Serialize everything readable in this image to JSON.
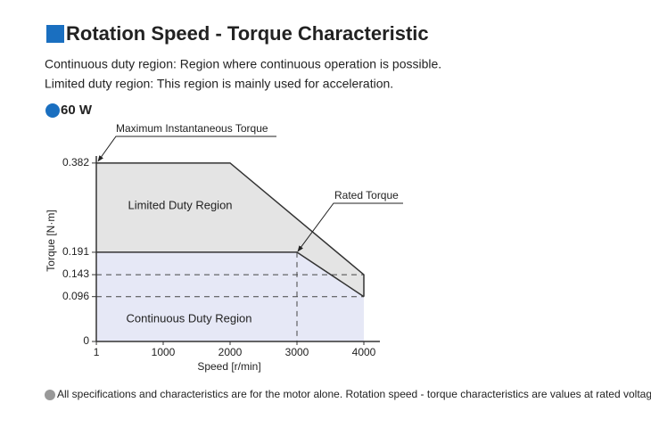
{
  "header": {
    "title": "Rotation Speed - Torque Characteristic",
    "lines": [
      "Continuous duty region: Region where continuous operation is possible.",
      "Limited duty region: This region is mainly used for acceleration."
    ],
    "model": "60 W"
  },
  "chart_data": {
    "type": "line",
    "x_label": "Speed [r/min]",
    "y_label": "Torque [N·m]",
    "xlim": [
      0,
      4240
    ],
    "ylim": [
      0,
      0.397
    ],
    "xticks": [
      1,
      1000,
      2000,
      3000,
      4000
    ],
    "yticks": [
      0,
      0.096,
      0.143,
      0.191,
      0.382
    ],
    "series": [
      {
        "name": "Maximum Instantaneous Torque",
        "color": "#333333",
        "x": [
          0,
          2000,
          4000,
          4000
        ],
        "values": [
          0.382,
          0.382,
          0.143,
          0.096
        ]
      },
      {
        "name": "Rated Torque",
        "color": "#333333",
        "x": [
          0,
          3000,
          4000
        ],
        "values": [
          0.191,
          0.191,
          0.096
        ]
      }
    ],
    "annotations": [
      "Limited Duty Region",
      "Continuous Duty Region"
    ]
  },
  "footnote": "All specifications and characteristics are for the motor alone. Rotation speed - torque characteristics are values at rated voltage."
}
